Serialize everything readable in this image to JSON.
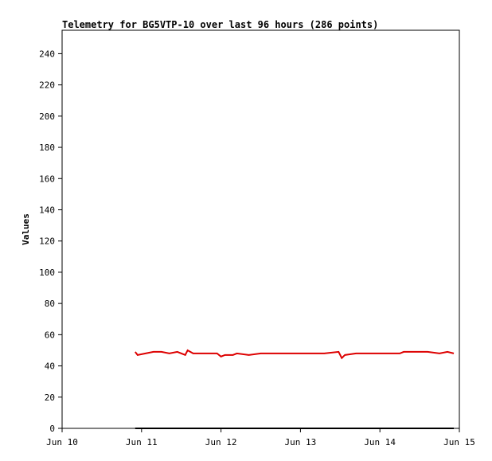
{
  "chart_data": {
    "type": "line",
    "title": "Telemetry for BG5VTP-10 over last 96 hours (286 points)",
    "ylabel": "Values",
    "xlim": [
      10,
      15
    ],
    "xticks": [
      {
        "value": 10,
        "label": "Jun 10"
      },
      {
        "value": 11,
        "label": "Jun 11"
      },
      {
        "value": 12,
        "label": "Jun 12"
      },
      {
        "value": 13,
        "label": "Jun 13"
      },
      {
        "value": 14,
        "label": "Jun 14"
      },
      {
        "value": 15,
        "label": "Jun 15"
      }
    ],
    "ylim": [
      0,
      255
    ],
    "yticks": [
      0,
      20,
      40,
      60,
      80,
      100,
      120,
      140,
      160,
      180,
      200,
      220,
      240
    ],
    "series": [
      {
        "color": "#dd0000",
        "x": [
          10.92,
          10.95,
          11.05,
          11.15,
          11.25,
          11.35,
          11.45,
          11.55,
          11.58,
          11.65,
          11.8,
          11.95,
          12.0,
          12.05,
          12.15,
          12.2,
          12.35,
          12.5,
          12.7,
          12.9,
          13.1,
          13.3,
          13.48,
          13.52,
          13.56,
          13.7,
          13.9,
          14.1,
          14.25,
          14.3,
          14.45,
          14.6,
          14.75,
          14.85,
          14.93
        ],
        "values": [
          49,
          47,
          48,
          49,
          49,
          48,
          49,
          47,
          50,
          48,
          48,
          48,
          46,
          47,
          47,
          48,
          47,
          48,
          48,
          48,
          48,
          48,
          49,
          45,
          47,
          48,
          48,
          48,
          48,
          49,
          49,
          49,
          48,
          49,
          48
        ]
      },
      {
        "color": "#000000",
        "x": [
          10.92,
          12.0,
          13.0,
          14.0,
          14.93
        ],
        "values": [
          0,
          0,
          0,
          0,
          0
        ]
      }
    ]
  }
}
